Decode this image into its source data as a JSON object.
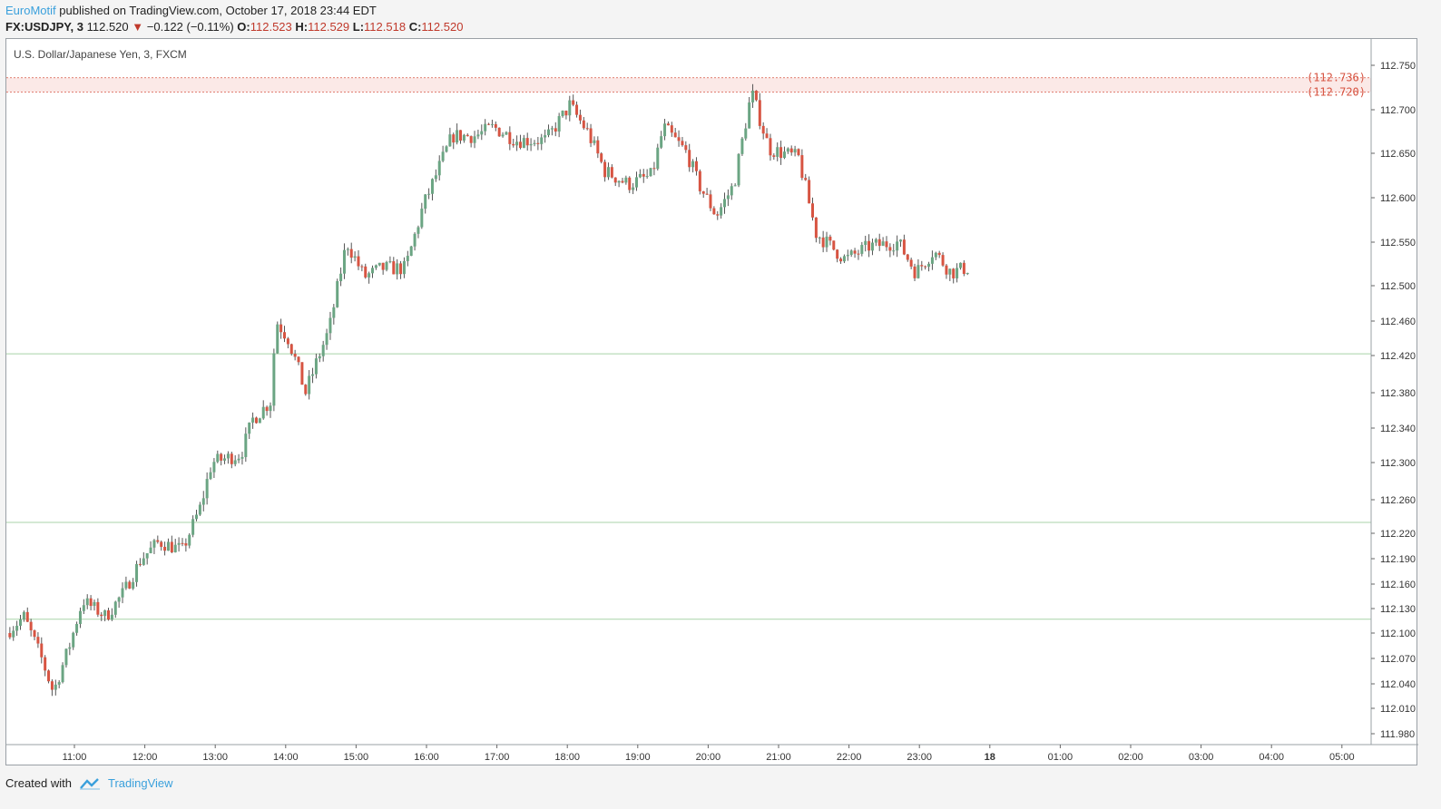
{
  "header": {
    "author": "EuroMotif",
    "published": "published on TradingView.com, October 17, 2018 23:44 EDT",
    "symbol": "FX:USDJPY, 3",
    "last": "112.520",
    "change": "−0.122 (−0.11%)",
    "o_label": "O:",
    "o": "112.523",
    "h_label": "H:",
    "h": "112.529",
    "l_label": "L:",
    "l": "112.518",
    "c_label": "C:",
    "c": "112.520"
  },
  "footer": {
    "created_with": "Created with",
    "brand": "TradingView"
  },
  "colors": {
    "up": "#6ba583",
    "down": "#d75442",
    "hline": "#a9d3a9",
    "resistance": "#d75442"
  },
  "chart_data": {
    "type": "candlestick",
    "title": "U.S. Dollar/Japanese Yen, 3, FXCM",
    "x_ticks": [
      "11:00",
      "12:00",
      "13:00",
      "14:00",
      "15:00",
      "16:00",
      "17:00",
      "18:00",
      "19:00",
      "20:00",
      "21:00",
      "22:00",
      "23:00",
      "18",
      "01:00",
      "02:00",
      "03:00",
      "04:00",
      "05:00"
    ],
    "y_ticks": [
      111.98,
      112.01,
      112.04,
      112.07,
      112.1,
      112.13,
      112.16,
      112.19,
      112.22,
      112.26,
      112.3,
      112.34,
      112.38,
      112.42,
      112.46,
      112.5,
      112.55,
      112.6,
      112.65,
      112.7,
      112.75
    ],
    "y_tick_labels": [
      "111.980",
      "112.010",
      "112.040",
      "112.070",
      "112.100",
      "112.130",
      "112.160",
      "112.190",
      "112.220",
      "112.260",
      "112.300",
      "112.340",
      "112.380",
      "112.420",
      "112.460",
      "112.500",
      "112.550",
      "112.600",
      "112.650",
      "112.700",
      "112.750"
    ],
    "resistance_lines": [
      112.736,
      112.72
    ],
    "resistance_labels": [
      "(112.736)",
      "(112.720)"
    ],
    "horizontal_lines": [
      112.422,
      112.233,
      112.117
    ],
    "anchors": [
      {
        "t": "10:05",
        "p": 112.1
      },
      {
        "t": "10:20",
        "p": 112.12
      },
      {
        "t": "10:35",
        "p": 112.07
      },
      {
        "t": "10:45",
        "p": 112.03
      },
      {
        "t": "11:00",
        "p": 112.09
      },
      {
        "t": "11:10",
        "p": 112.14
      },
      {
        "t": "11:30",
        "p": 112.12
      },
      {
        "t": "11:45",
        "p": 112.15
      },
      {
        "t": "12:00",
        "p": 112.19
      },
      {
        "t": "12:15",
        "p": 112.21
      },
      {
        "t": "12:35",
        "p": 112.2
      },
      {
        "t": "12:50",
        "p": 112.25
      },
      {
        "t": "13:00",
        "p": 112.3
      },
      {
        "t": "13:25",
        "p": 112.31
      },
      {
        "t": "13:35",
        "p": 112.35
      },
      {
        "t": "13:50",
        "p": 112.37
      },
      {
        "t": "13:55",
        "p": 112.46
      },
      {
        "t": "14:05",
        "p": 112.44
      },
      {
        "t": "14:20",
        "p": 112.38
      },
      {
        "t": "14:40",
        "p": 112.45
      },
      {
        "t": "14:55",
        "p": 112.55
      },
      {
        "t": "15:10",
        "p": 112.51
      },
      {
        "t": "15:25",
        "p": 112.52
      },
      {
        "t": "15:45",
        "p": 112.52
      },
      {
        "t": "16:00",
        "p": 112.59
      },
      {
        "t": "16:25",
        "p": 112.67
      },
      {
        "t": "16:45",
        "p": 112.67
      },
      {
        "t": "17:00",
        "p": 112.68
      },
      {
        "t": "17:20",
        "p": 112.665
      },
      {
        "t": "17:45",
        "p": 112.665
      },
      {
        "t": "18:05",
        "p": 112.705
      },
      {
        "t": "18:20",
        "p": 112.675
      },
      {
        "t": "18:35",
        "p": 112.63
      },
      {
        "t": "18:55",
        "p": 112.615
      },
      {
        "t": "19:15",
        "p": 112.625
      },
      {
        "t": "19:25",
        "p": 112.68
      },
      {
        "t": "19:45",
        "p": 112.65
      },
      {
        "t": "19:55",
        "p": 112.615
      },
      {
        "t": "20:10",
        "p": 112.58
      },
      {
        "t": "20:25",
        "p": 112.615
      },
      {
        "t": "20:40",
        "p": 112.72
      },
      {
        "t": "20:55",
        "p": 112.655
      },
      {
        "t": "21:20",
        "p": 112.645
      },
      {
        "t": "21:35",
        "p": 112.56
      },
      {
        "t": "22:00",
        "p": 112.53
      },
      {
        "t": "22:20",
        "p": 112.545
      },
      {
        "t": "22:45",
        "p": 112.55
      },
      {
        "t": "23:00",
        "p": 112.515
      },
      {
        "t": "23:15",
        "p": 112.54
      },
      {
        "t": "23:30",
        "p": 112.515
      },
      {
        "t": "23:42",
        "p": 112.52
      }
    ],
    "last_bar_time": "23:42",
    "bar_interval_minutes": 3
  }
}
